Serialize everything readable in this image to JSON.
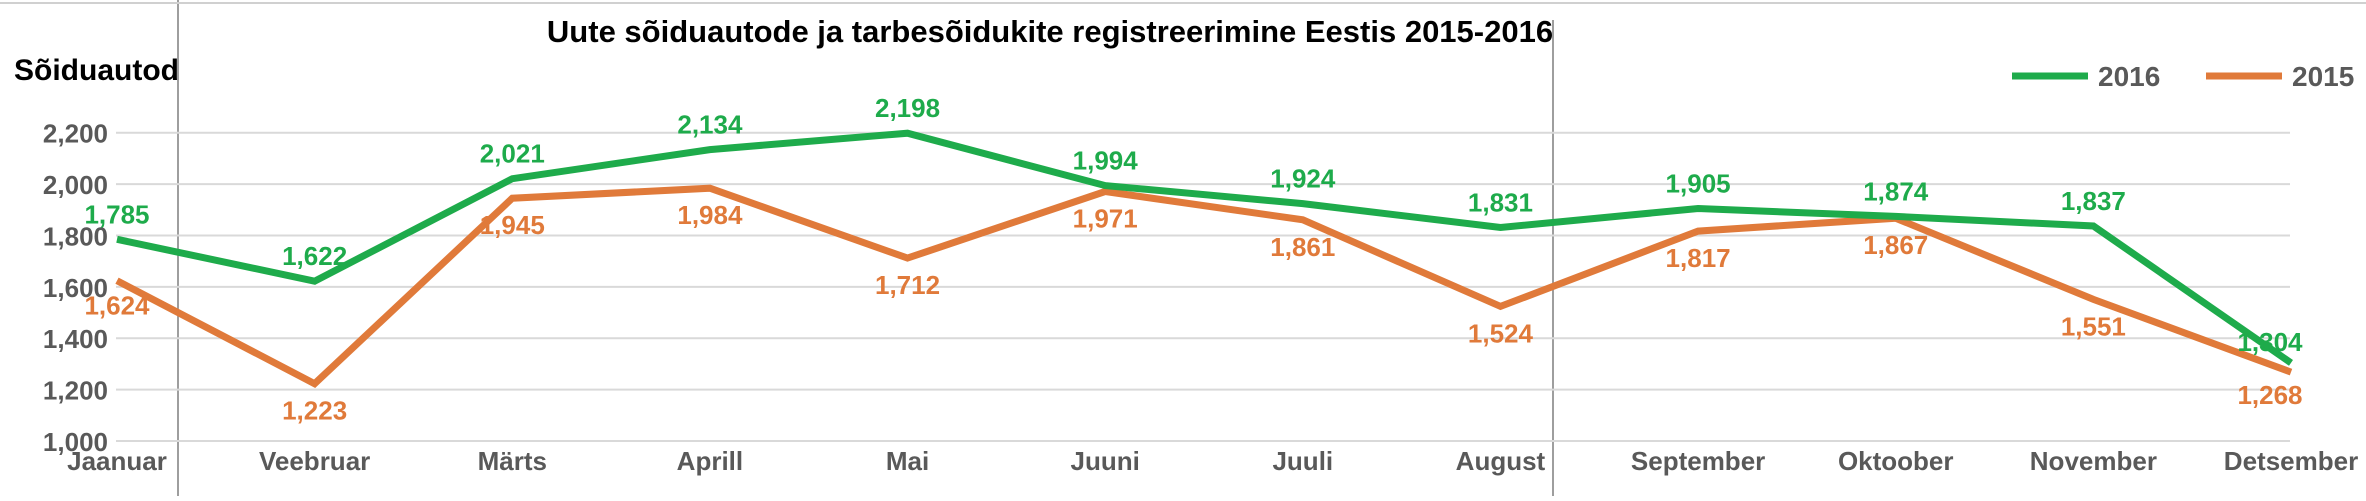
{
  "chart_data": {
    "type": "line",
    "title": "Uute sõiduautode ja tarbesõidukite registreerimine Eestis 2015-2016",
    "ylabel": "Sõiduautod",
    "xlabel": "",
    "categories": [
      "Jaanuar",
      "Veebruar",
      "Märts",
      "Aprill",
      "Mai",
      "Juuni",
      "Juuli",
      "August",
      "September",
      "Oktoober",
      "November",
      "Detsember"
    ],
    "ylim": [
      1000,
      2300
    ],
    "yticks": [
      1000,
      1200,
      1400,
      1600,
      1800,
      2000,
      2200
    ],
    "ytick_labels": [
      "1,000",
      "1,200",
      "1,400",
      "1,600",
      "1,800",
      "2,000",
      "2,200"
    ],
    "grid": true,
    "legend_position": "top-right",
    "series": [
      {
        "name": "2016",
        "color": "#1eab4b",
        "values": [
          1785,
          1622,
          2021,
          2134,
          2198,
          1994,
          1924,
          1831,
          1905,
          1874,
          1837,
          1304
        ],
        "labels": [
          "1,785",
          "1,622",
          "2,021",
          "2,134",
          "2,198",
          "1,994",
          "1,924",
          "1,831",
          "1,905",
          "1,874",
          "1,837",
          "1,304"
        ]
      },
      {
        "name": "2015",
        "color": "#e07a3a",
        "values": [
          1624,
          1223,
          1945,
          1984,
          1712,
          1971,
          1861,
          1524,
          1817,
          1867,
          1551,
          1268
        ],
        "labels": [
          "1,624",
          "1,223",
          "1,945",
          "1,984",
          "1,712",
          "1,971",
          "1,861",
          "1,524",
          "1,817",
          "1,867",
          "1,551",
          "1,268"
        ]
      }
    ]
  }
}
